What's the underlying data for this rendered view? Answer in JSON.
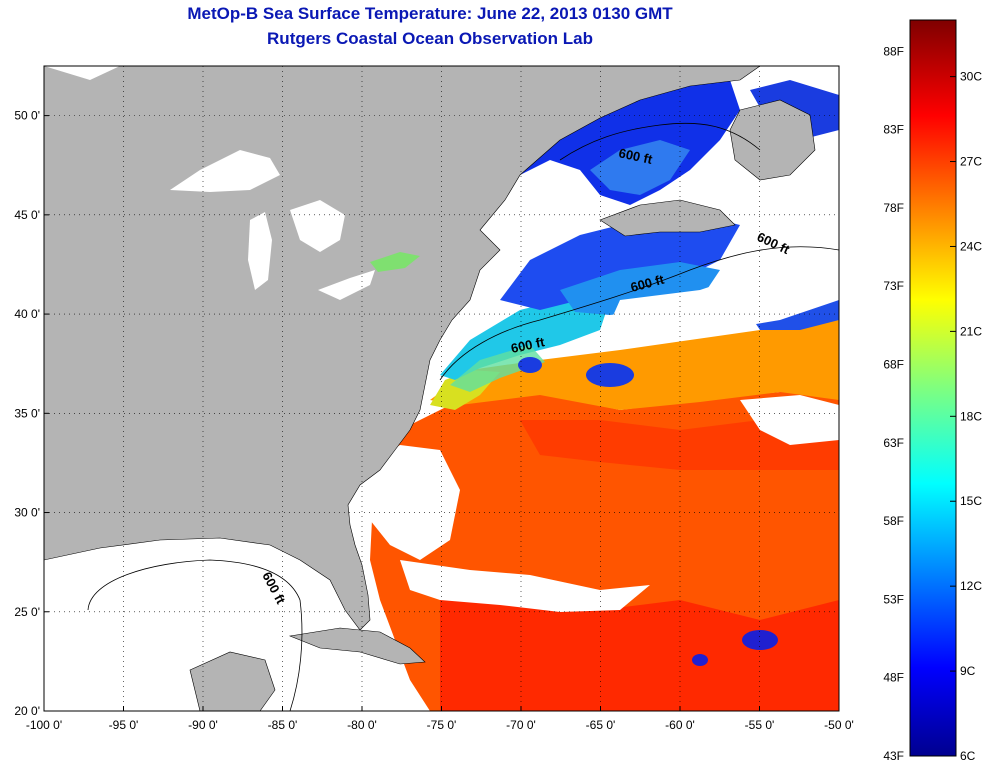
{
  "header": {
    "title": "MetOp-B Sea Surface Temperature:  June 22, 2013 0130 GMT",
    "subtitle": "Rutgers Coastal Ocean Observation Lab"
  },
  "axes": {
    "lon_ticks": [
      -100,
      -95,
      -90,
      -85,
      -80,
      -75,
      -70,
      -65,
      -60,
      -55,
      -50
    ],
    "lat_ticks": [
      20,
      25,
      30,
      35,
      40,
      45,
      50
    ],
    "lon_labels": [
      "-100 0'",
      "-95 0'",
      "-90 0'",
      "-85 0'",
      "-80 0'",
      "-75 0'",
      "-70 0'",
      "-65 0'",
      "-60 0'",
      "-55 0'",
      "-50 0'"
    ],
    "lat_labels": [
      "20 0'",
      "25 0'",
      "30 0'",
      "35 0'",
      "40 0'",
      "45 0'",
      "50 0'"
    ],
    "lon_range": [
      -100,
      -50
    ],
    "lat_range": [
      20,
      52.5
    ],
    "grid": "dotted"
  },
  "colorbar": {
    "colormap": "jet",
    "range_c": [
      6,
      32
    ],
    "range_f": [
      43,
      90
    ],
    "fahrenheit_ticks": [
      "88F",
      "83F",
      "78F",
      "73F",
      "68F",
      "63F",
      "58F",
      "53F",
      "48F",
      "43F"
    ],
    "celsius_ticks": [
      "30C",
      "27C",
      "24C",
      "21C",
      "18C",
      "15C",
      "12C",
      "9C",
      "6C"
    ]
  },
  "contours": {
    "label": "600 ft",
    "label_bold": "600 ft"
  },
  "colors": {
    "title": "#0a18b4",
    "land": "#b4b4b4",
    "no_data": "#ffffff"
  }
}
